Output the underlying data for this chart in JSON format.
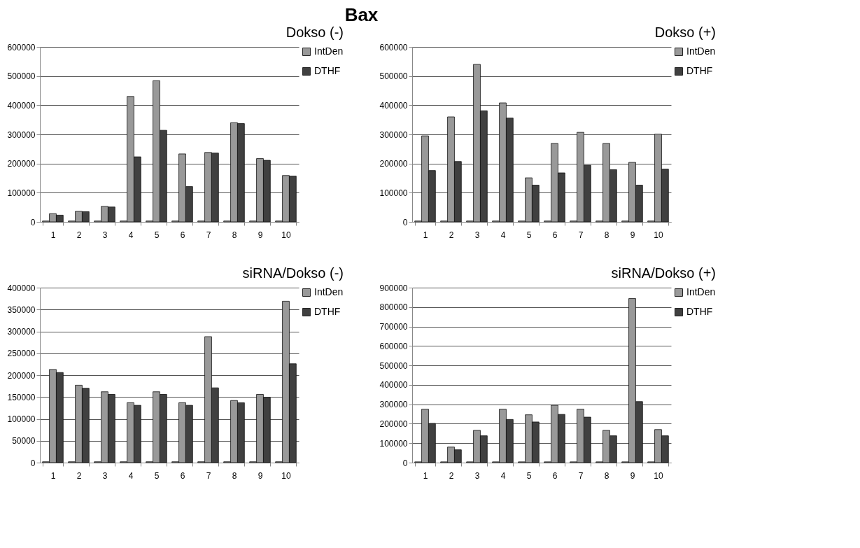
{
  "chart_data": [
    {
      "type": "bar",
      "title": "Dokso (-)",
      "annotations": [
        "Bax"
      ],
      "categories": [
        "1",
        "2",
        "3",
        "4",
        "5",
        "6",
        "7",
        "8",
        "9",
        "10"
      ],
      "series": [
        {
          "color": "#a6a6a6",
          "values": [
            3000,
            3000,
            3000,
            3000,
            3000,
            3000,
            3000,
            3000,
            3000,
            3000
          ]
        },
        {
          "name": "IntDen",
          "color": "#999999",
          "values": [
            28000,
            36000,
            53000,
            430000,
            484000,
            233000,
            238000,
            340000,
            217000,
            159000
          ]
        },
        {
          "name": "DTHF",
          "color": "#404040",
          "values": [
            23000,
            35000,
            51000,
            223000,
            314000,
            121000,
            236000,
            337000,
            211000,
            157000
          ]
        }
      ],
      "ylim": [
        0,
        600000
      ],
      "yticks": [
        0,
        100000,
        200000,
        300000,
        400000,
        500000,
        600000
      ],
      "grid": "y",
      "legend": "right"
    },
    {
      "type": "bar",
      "title": "Dokso (+)",
      "categories": [
        "1",
        "2",
        "3",
        "4",
        "5",
        "6",
        "7",
        "8",
        "9",
        "10"
      ],
      "series": [
        {
          "color": "#a6a6a6",
          "values": [
            3000,
            3000,
            3000,
            3000,
            3000,
            3000,
            3000,
            3000,
            3000,
            3000
          ]
        },
        {
          "name": "IntDen",
          "color": "#999999",
          "values": [
            295000,
            360000,
            540000,
            408000,
            151000,
            269000,
            307000,
            269000,
            204000,
            301000
          ]
        },
        {
          "name": "DTHF",
          "color": "#404040",
          "values": [
            176000,
            207000,
            381000,
            356000,
            126000,
            168000,
            194000,
            179000,
            126000,
            181000
          ]
        }
      ],
      "ylim": [
        0,
        600000
      ],
      "yticks": [
        0,
        100000,
        200000,
        300000,
        400000,
        500000,
        600000
      ],
      "grid": "y",
      "legend": "right"
    },
    {
      "type": "bar",
      "title": "siRNA/Dokso (-)",
      "categories": [
        "1",
        "2",
        "3",
        "4",
        "5",
        "6",
        "7",
        "8",
        "9",
        "10"
      ],
      "series": [
        {
          "color": "#a6a6a6",
          "values": [
            2000,
            2000,
            2000,
            2000,
            2000,
            2000,
            2000,
            2000,
            2000,
            2000
          ]
        },
        {
          "name": "IntDen",
          "color": "#999999",
          "values": [
            213000,
            177000,
            162000,
            137000,
            162000,
            137000,
            288000,
            142000,
            156000,
            369000
          ]
        },
        {
          "name": "DTHF",
          "color": "#404040",
          "values": [
            206000,
            170000,
            156000,
            131000,
            156000,
            131000,
            171000,
            137000,
            149000,
            226000
          ]
        }
      ],
      "ylim": [
        0,
        400000
      ],
      "yticks": [
        0,
        50000,
        100000,
        150000,
        200000,
        250000,
        300000,
        350000,
        400000
      ],
      "grid": "y",
      "legend": "right"
    },
    {
      "type": "bar",
      "title": "siRNA/Dokso (+)",
      "categories": [
        "1",
        "2",
        "3",
        "4",
        "5",
        "6",
        "7",
        "8",
        "9",
        "10"
      ],
      "series": [
        {
          "color": "#a6a6a6",
          "values": [
            4000,
            4000,
            4000,
            4000,
            4000,
            4000,
            4000,
            4000,
            4000,
            4000
          ]
        },
        {
          "name": "IntDen",
          "color": "#999999",
          "values": [
            275000,
            80000,
            166000,
            275000,
            246000,
            295000,
            275000,
            166000,
            844000,
            170000
          ]
        },
        {
          "name": "DTHF",
          "color": "#404040",
          "values": [
            202000,
            66000,
            138000,
            222000,
            209000,
            248000,
            234000,
            138000,
            314000,
            138000
          ]
        }
      ],
      "ylim": [
        0,
        900000
      ],
      "yticks": [
        0,
        100000,
        200000,
        300000,
        400000,
        500000,
        600000,
        700000,
        800000,
        900000
      ],
      "grid": "y",
      "legend": "right"
    }
  ]
}
